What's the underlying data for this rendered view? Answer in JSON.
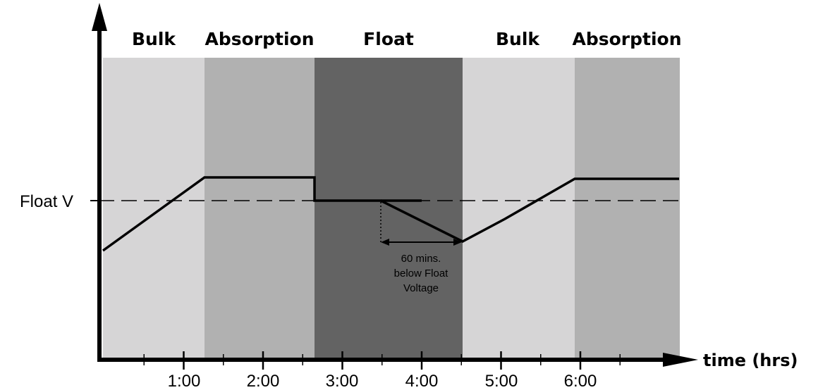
{
  "phases": [
    {
      "label": "Bulk",
      "color": "#d6d5d6"
    },
    {
      "label": "Absorption",
      "color": "#b1b1b1"
    },
    {
      "label": "Float",
      "color": "#636363"
    },
    {
      "label": "Bulk",
      "color": "#d6d5d6"
    },
    {
      "label": "Absorption",
      "color": "#b1b1b1"
    }
  ],
  "phase_boundaries_hrs": [
    0,
    1.25,
    2.65,
    4.5,
    5.85,
    7.1
  ],
  "x_axis": {
    "title": "time (hrs)",
    "tick_labels": [
      "1:00",
      "2:00",
      "3:00",
      "4:00",
      "5:00",
      "6:00"
    ],
    "tick_values_hrs": [
      1,
      2,
      3,
      4,
      5,
      6
    ]
  },
  "y_axis": {
    "marker_label": "Float V"
  },
  "annotation": {
    "lines": [
      "60 mins.",
      "below Float",
      "Voltage"
    ]
  },
  "colors": {
    "axis": "#000000",
    "voltage_line": "#000000"
  }
}
